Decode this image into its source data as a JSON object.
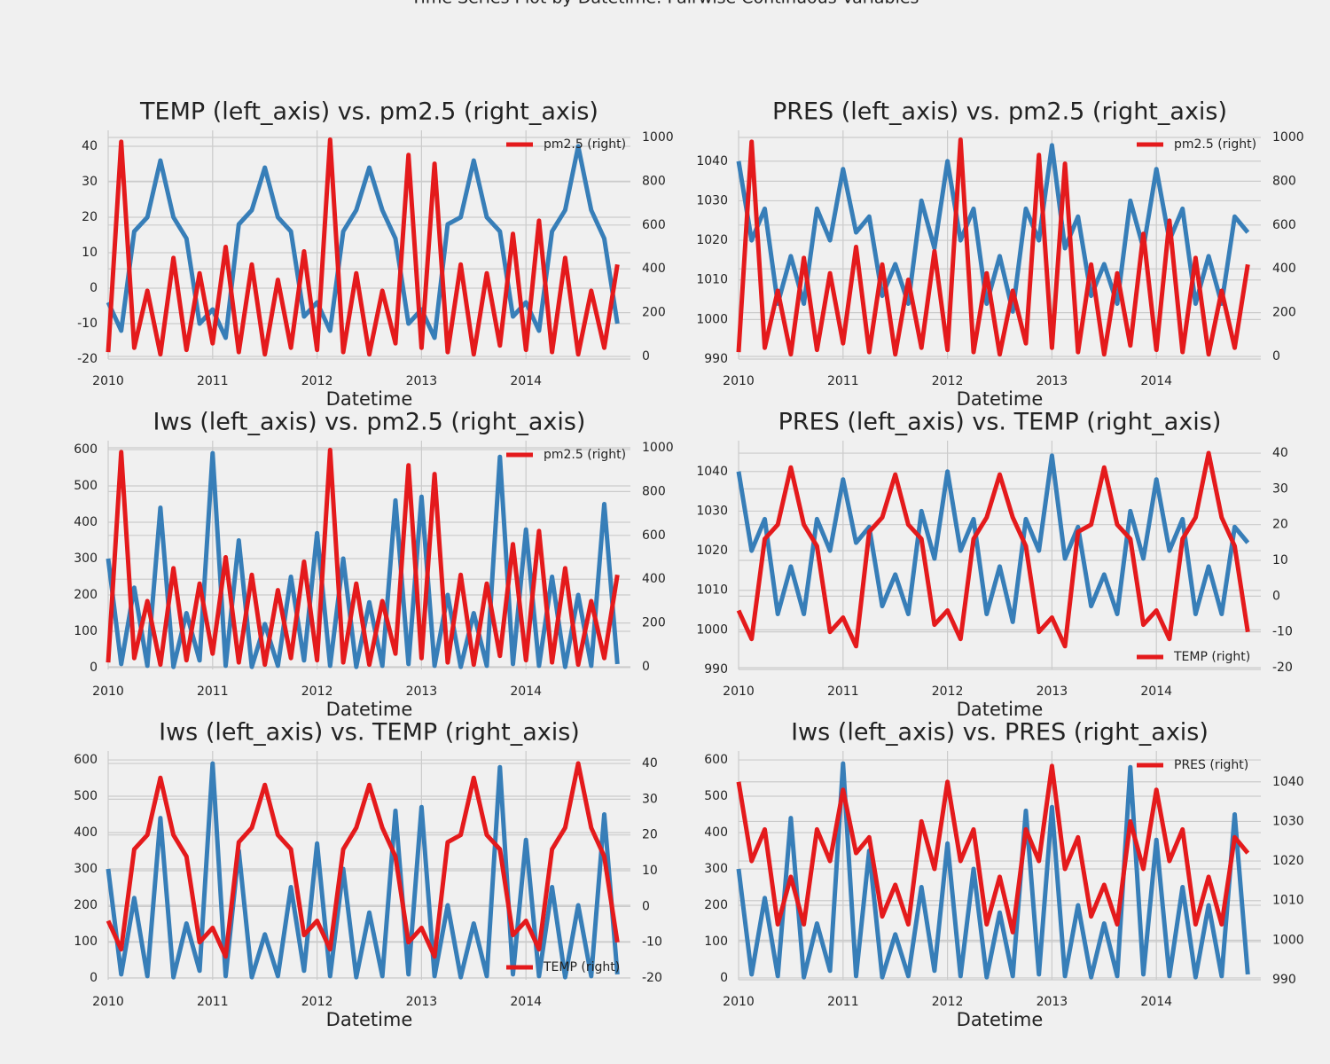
{
  "suptitle": "Time Series Plot by Datetime: Pairwise Continuous Variables",
  "chart_data": [
    {
      "type": "line",
      "title": "TEMP (left_axis) vs. pm2.5 (right_axis)",
      "xlabel": "Datetime",
      "x": [
        2010,
        2010.125,
        2010.25,
        2010.375,
        2010.5,
        2010.625,
        2010.75,
        2010.875,
        2011,
        2011.125,
        2011.25,
        2011.375,
        2011.5,
        2011.625,
        2011.75,
        2011.875,
        2012,
        2012.125,
        2012.25,
        2012.375,
        2012.5,
        2012.625,
        2012.75,
        2012.875,
        2013,
        2013.125,
        2013.25,
        2013.375,
        2013.5,
        2013.625,
        2013.75,
        2013.875,
        2014,
        2014.125,
        2014.25,
        2014.375,
        2014.5,
        2014.625,
        2014.75,
        2014.875
      ],
      "xlim": [
        2010,
        2015
      ],
      "xticks": [
        2010,
        2011,
        2012,
        2013,
        2014
      ],
      "ylim": [
        -20,
        42.5
      ],
      "yticks": [
        -20,
        -10,
        0,
        10,
        20,
        30,
        40
      ],
      "y2lim": [
        -12,
        1000
      ],
      "y2ticks": [
        0,
        200,
        400,
        600,
        800,
        1000
      ],
      "grid": true,
      "legend": "upper right",
      "series": [
        {
          "color": "#377eb8",
          "values": [
            -4,
            -12,
            16,
            20,
            36,
            20,
            14,
            -10,
            -6,
            -14,
            18,
            22,
            34,
            20,
            16,
            -8,
            -4,
            -12,
            16,
            22,
            34,
            22,
            14,
            -10,
            -6,
            -14,
            18,
            20,
            36,
            20,
            16,
            -8,
            -4,
            -12,
            16,
            22,
            40,
            22,
            14,
            -10
          ]
        },
        {
          "name": "pm2.5 (right)",
          "color": "#e41a1c",
          "axis": "y2",
          "values": [
            20,
            980,
            40,
            300,
            10,
            450,
            30,
            380,
            60,
            500,
            20,
            420,
            10,
            350,
            40,
            480,
            30,
            990,
            20,
            380,
            10,
            300,
            60,
            920,
            40,
            880,
            20,
            420,
            10,
            380,
            50,
            560,
            30,
            620,
            20,
            450,
            10,
            300,
            40,
            420
          ]
        }
      ]
    },
    {
      "type": "line",
      "title": "PRES (left_axis) vs. pm2.5 (right_axis)",
      "xlabel": "Datetime",
      "x": [
        2010,
        2010.125,
        2010.25,
        2010.375,
        2010.5,
        2010.625,
        2010.75,
        2010.875,
        2011,
        2011.125,
        2011.25,
        2011.375,
        2011.5,
        2011.625,
        2011.75,
        2011.875,
        2012,
        2012.125,
        2012.25,
        2012.375,
        2012.5,
        2012.625,
        2012.75,
        2012.875,
        2013,
        2013.125,
        2013.25,
        2013.375,
        2013.5,
        2013.625,
        2013.75,
        2013.875,
        2014,
        2014.125,
        2014.25,
        2014.375,
        2014.5,
        2014.625,
        2014.75,
        2014.875
      ],
      "xlim": [
        2010,
        2015
      ],
      "xticks": [
        2010,
        2011,
        2012,
        2013,
        2014
      ],
      "ylim": [
        990,
        1046
      ],
      "yticks": [
        990,
        1000,
        1010,
        1020,
        1030,
        1040
      ],
      "y2lim": [
        -12,
        1000
      ],
      "y2ticks": [
        0,
        200,
        400,
        600,
        800,
        1000
      ],
      "grid": true,
      "legend": "upper right",
      "series": [
        {
          "color": "#377eb8",
          "values": [
            1040,
            1020,
            1028,
            1004,
            1016,
            1004,
            1028,
            1020,
            1038,
            1022,
            1026,
            1006,
            1014,
            1004,
            1030,
            1018,
            1040,
            1020,
            1028,
            1004,
            1016,
            1002,
            1028,
            1020,
            1044,
            1018,
            1026,
            1006,
            1014,
            1004,
            1030,
            1018,
            1038,
            1020,
            1028,
            1004,
            1016,
            1004,
            1026,
            1022
          ]
        },
        {
          "name": "pm2.5 (right)",
          "color": "#e41a1c",
          "axis": "y2",
          "values": [
            20,
            980,
            40,
            300,
            10,
            450,
            30,
            380,
            60,
            500,
            20,
            420,
            10,
            350,
            40,
            480,
            30,
            990,
            20,
            380,
            10,
            300,
            60,
            920,
            40,
            880,
            20,
            420,
            10,
            380,
            50,
            560,
            30,
            620,
            20,
            450,
            10,
            300,
            40,
            420
          ]
        }
      ]
    },
    {
      "type": "line",
      "title": "Iws (left_axis) vs. pm2.5 (right_axis)",
      "xlabel": "Datetime",
      "x": [
        2010,
        2010.125,
        2010.25,
        2010.375,
        2010.5,
        2010.625,
        2010.75,
        2010.875,
        2011,
        2011.125,
        2011.25,
        2011.375,
        2011.5,
        2011.625,
        2011.75,
        2011.875,
        2012,
        2012.125,
        2012.25,
        2012.375,
        2012.5,
        2012.625,
        2012.75,
        2012.875,
        2013,
        2013.125,
        2013.25,
        2013.375,
        2013.5,
        2013.625,
        2013.75,
        2013.875,
        2014,
        2014.125,
        2014.25,
        2014.375,
        2014.5,
        2014.625,
        2014.75,
        2014.875
      ],
      "xlim": [
        2010,
        2015
      ],
      "xticks": [
        2010,
        2011,
        2012,
        2013,
        2014
      ],
      "ylim": [
        -5,
        605
      ],
      "yticks": [
        0,
        100,
        200,
        300,
        400,
        500,
        600
      ],
      "y2lim": [
        -12,
        1000
      ],
      "y2ticks": [
        0,
        200,
        400,
        600,
        800,
        1000
      ],
      "grid": true,
      "legend": "upper right",
      "series": [
        {
          "color": "#377eb8",
          "values": [
            300,
            10,
            220,
            5,
            440,
            2,
            150,
            20,
            590,
            5,
            350,
            2,
            120,
            5,
            250,
            20,
            370,
            5,
            300,
            2,
            180,
            5,
            460,
            10,
            470,
            5,
            200,
            2,
            150,
            5,
            580,
            10,
            380,
            5,
            250,
            2,
            200,
            5,
            450,
            10
          ]
        },
        {
          "name": "pm2.5 (right)",
          "color": "#e41a1c",
          "axis": "y2",
          "values": [
            20,
            980,
            40,
            300,
            10,
            450,
            30,
            380,
            60,
            500,
            20,
            420,
            10,
            350,
            40,
            480,
            30,
            990,
            20,
            380,
            10,
            300,
            60,
            920,
            40,
            880,
            20,
            420,
            10,
            380,
            50,
            560,
            30,
            620,
            20,
            450,
            10,
            300,
            40,
            420
          ]
        }
      ]
    },
    {
      "type": "line",
      "title": "PRES (left_axis) vs. TEMP (right_axis)",
      "xlabel": "Datetime",
      "x": [
        2010,
        2010.125,
        2010.25,
        2010.375,
        2010.5,
        2010.625,
        2010.75,
        2010.875,
        2011,
        2011.125,
        2011.25,
        2011.375,
        2011.5,
        2011.625,
        2011.75,
        2011.875,
        2012,
        2012.125,
        2012.25,
        2012.375,
        2012.5,
        2012.625,
        2012.75,
        2012.875,
        2013,
        2013.125,
        2013.25,
        2013.375,
        2013.5,
        2013.625,
        2013.75,
        2013.875,
        2014,
        2014.125,
        2014.25,
        2014.375,
        2014.5,
        2014.625,
        2014.75,
        2014.875
      ],
      "xlim": [
        2010,
        2015
      ],
      "xticks": [
        2010,
        2011,
        2012,
        2013,
        2014
      ],
      "ylim": [
        990,
        1046
      ],
      "yticks": [
        990,
        1000,
        1010,
        1020,
        1030,
        1040
      ],
      "y2lim": [
        -20.5,
        41.5
      ],
      "y2ticks": [
        -20,
        -10,
        0,
        10,
        20,
        30,
        40
      ],
      "grid": true,
      "legend": "lower right",
      "series": [
        {
          "color": "#377eb8",
          "values": [
            1040,
            1020,
            1028,
            1004,
            1016,
            1004,
            1028,
            1020,
            1038,
            1022,
            1026,
            1006,
            1014,
            1004,
            1030,
            1018,
            1040,
            1020,
            1028,
            1004,
            1016,
            1002,
            1028,
            1020,
            1044,
            1018,
            1026,
            1006,
            1014,
            1004,
            1030,
            1018,
            1038,
            1020,
            1028,
            1004,
            1016,
            1004,
            1026,
            1022
          ]
        },
        {
          "name": "TEMP (right)",
          "color": "#e41a1c",
          "axis": "y2",
          "values": [
            -4,
            -12,
            16,
            20,
            36,
            20,
            14,
            -10,
            -6,
            -14,
            18,
            22,
            34,
            20,
            16,
            -8,
            -4,
            -12,
            16,
            22,
            34,
            22,
            14,
            -10,
            -6,
            -14,
            18,
            20,
            36,
            20,
            16,
            -8,
            -4,
            -12,
            16,
            22,
            40,
            22,
            14,
            -10
          ]
        }
      ]
    },
    {
      "type": "line",
      "title": "Iws (left_axis) vs. TEMP (right_axis)",
      "xlabel": "Datetime",
      "x": [
        2010,
        2010.125,
        2010.25,
        2010.375,
        2010.5,
        2010.625,
        2010.75,
        2010.875,
        2011,
        2011.125,
        2011.25,
        2011.375,
        2011.5,
        2011.625,
        2011.75,
        2011.875,
        2012,
        2012.125,
        2012.25,
        2012.375,
        2012.5,
        2012.625,
        2012.75,
        2012.875,
        2013,
        2013.125,
        2013.25,
        2013.375,
        2013.5,
        2013.625,
        2013.75,
        2013.875,
        2014,
        2014.125,
        2014.25,
        2014.375,
        2014.5,
        2014.625,
        2014.75,
        2014.875
      ],
      "xlim": [
        2010,
        2015
      ],
      "xticks": [
        2010,
        2011,
        2012,
        2013,
        2014
      ],
      "ylim": [
        -5,
        605
      ],
      "yticks": [
        0,
        100,
        200,
        300,
        400,
        500,
        600
      ],
      "y2lim": [
        -20.5,
        41.5
      ],
      "y2ticks": [
        -20,
        -10,
        0,
        10,
        20,
        30,
        40
      ],
      "grid": true,
      "legend": "lower right",
      "series": [
        {
          "color": "#377eb8",
          "values": [
            300,
            10,
            220,
            5,
            440,
            2,
            150,
            20,
            590,
            5,
            350,
            2,
            120,
            5,
            250,
            20,
            370,
            5,
            300,
            2,
            180,
            5,
            460,
            10,
            470,
            5,
            200,
            2,
            150,
            5,
            580,
            10,
            380,
            5,
            250,
            2,
            200,
            5,
            450,
            10
          ]
        },
        {
          "name": "TEMP (right)",
          "color": "#e41a1c",
          "axis": "y2",
          "values": [
            -4,
            -12,
            16,
            20,
            36,
            20,
            14,
            -10,
            -6,
            -14,
            18,
            22,
            34,
            20,
            16,
            -8,
            -4,
            -12,
            16,
            22,
            34,
            22,
            14,
            -10,
            -6,
            -14,
            18,
            20,
            36,
            20,
            16,
            -8,
            -4,
            -12,
            16,
            22,
            40,
            22,
            14,
            -10
          ]
        }
      ]
    },
    {
      "type": "line",
      "title": "Iws (left_axis) vs. PRES (right_axis)",
      "xlabel": "Datetime",
      "x": [
        2010,
        2010.125,
        2010.25,
        2010.375,
        2010.5,
        2010.625,
        2010.75,
        2010.875,
        2011,
        2011.125,
        2011.25,
        2011.375,
        2011.5,
        2011.625,
        2011.75,
        2011.875,
        2012,
        2012.125,
        2012.25,
        2012.375,
        2012.5,
        2012.625,
        2012.75,
        2012.875,
        2013,
        2013.125,
        2013.25,
        2013.375,
        2013.5,
        2013.625,
        2013.75,
        2013.875,
        2014,
        2014.125,
        2014.25,
        2014.375,
        2014.5,
        2014.625,
        2014.75,
        2014.875
      ],
      "xlim": [
        2010,
        2015
      ],
      "xticks": [
        2010,
        2011,
        2012,
        2013,
        2014
      ],
      "ylim": [
        -5,
        605
      ],
      "yticks": [
        0,
        100,
        200,
        300,
        400,
        500,
        600
      ],
      "y2lim": [
        990,
        1046
      ],
      "y2ticks": [
        990,
        1000,
        1010,
        1020,
        1030,
        1040
      ],
      "grid": true,
      "legend": "upper right",
      "series": [
        {
          "color": "#377eb8",
          "values": [
            300,
            10,
            220,
            5,
            440,
            2,
            150,
            20,
            590,
            5,
            350,
            2,
            120,
            5,
            250,
            20,
            370,
            5,
            300,
            2,
            180,
            5,
            460,
            10,
            470,
            5,
            200,
            2,
            150,
            5,
            580,
            10,
            380,
            5,
            250,
            2,
            200,
            5,
            450,
            10
          ]
        },
        {
          "name": "PRES (right)",
          "color": "#e41a1c",
          "axis": "y2",
          "values": [
            1040,
            1020,
            1028,
            1004,
            1016,
            1004,
            1028,
            1020,
            1038,
            1022,
            1026,
            1006,
            1014,
            1004,
            1030,
            1018,
            1040,
            1020,
            1028,
            1004,
            1016,
            1002,
            1028,
            1020,
            1044,
            1018,
            1026,
            1006,
            1014,
            1004,
            1030,
            1018,
            1038,
            1020,
            1028,
            1004,
            1016,
            1004,
            1026,
            1022
          ]
        }
      ]
    }
  ]
}
